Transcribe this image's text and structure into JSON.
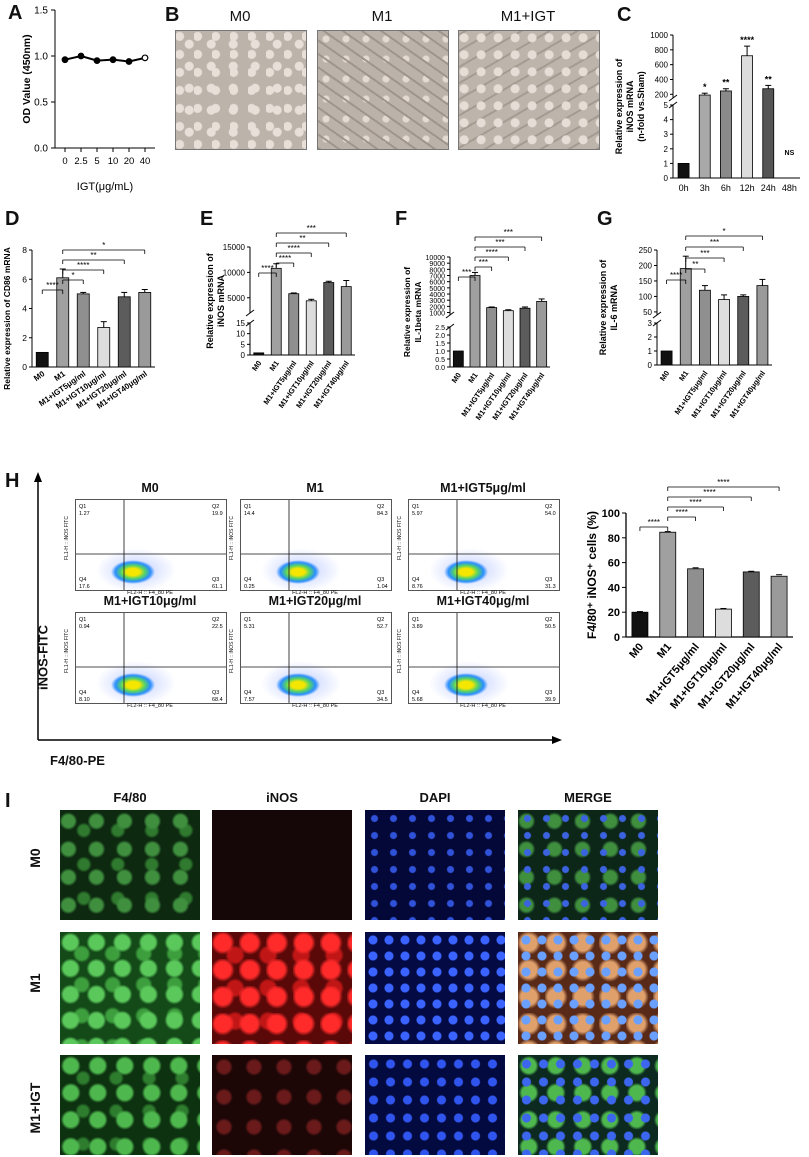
{
  "panels": {
    "A": "A",
    "B": "B",
    "C": "C",
    "D": "D",
    "E": "E",
    "F": "F",
    "G": "G",
    "H": "H",
    "I": "I"
  },
  "microscopy": {
    "labels": [
      "M0",
      "M1",
      "M1+IGT"
    ]
  },
  "flow": {
    "titles": [
      "M0",
      "M1",
      "M1+IGT5μg/ml",
      "M1+IGT10μg/ml",
      "M1+IGT20μg/ml",
      "M1+IGT40μg/ml"
    ],
    "quadrants": [
      {
        "q1": "1.27",
        "q2": "19.9",
        "q3": "61.1",
        "q4": "17.6"
      },
      {
        "q1": "14.4",
        "q2": "84.3",
        "q3": "1.04",
        "q4": "0.25"
      },
      {
        "q1": "5.97",
        "q2": "54.0",
        "q3": "31.3",
        "q4": "8.76"
      },
      {
        "q1": "0.94",
        "q2": "22.5",
        "q3": "68.4",
        "q4": "8.10"
      },
      {
        "q1": "5.31",
        "q2": "52.7",
        "q3": "34.5",
        "q4": "7.57"
      },
      {
        "q1": "3.89",
        "q2": "50.5",
        "q3": "39.9",
        "q4": "5.68"
      }
    ],
    "q_labels": {
      "q1": "Q1",
      "q2": "Q2",
      "q3": "Q3",
      "q4": "Q4"
    },
    "x_axis_small": "FL2-H :: F4_80 PE",
    "y_axis_small": "FL1-H :: iNOS FITC",
    "x_axis": "F4/80-PE",
    "y_axis": "iNOS-FITC"
  },
  "immunofluorescence": {
    "columns": [
      "F4/80",
      "iNOS",
      "DAPI",
      "MERGE"
    ],
    "rows": [
      "M0",
      "M1",
      "M1+IGT"
    ]
  },
  "chart_data": [
    {
      "panel": "A",
      "type": "line",
      "x": [
        "0",
        "2.5",
        "5",
        "10",
        "20",
        "40"
      ],
      "values": [
        0.96,
        1.0,
        0.95,
        0.96,
        0.94,
        0.98
      ],
      "xlabel": "IGT(μg/mL)",
      "ylabel": "OD Value (450nm)",
      "ylim": [
        0,
        1.5
      ],
      "yticks": [
        "0.0",
        "0.5",
        "1.0",
        "1.5"
      ]
    },
    {
      "panel": "C",
      "type": "bar",
      "categories": [
        "0h",
        "3h",
        "6h",
        "12h",
        "24h",
        "48h"
      ],
      "values": [
        1,
        190,
        245,
        720,
        275,
        0
      ],
      "errors": [
        0,
        25,
        30,
        130,
        45,
        0
      ],
      "significance": [
        "",
        "*",
        "**",
        "****",
        "**",
        "NS"
      ],
      "ylabel": "Relative expression of iNOS mRNA (n-fold vs.Sham)",
      "yticks_upper": [
        "200",
        "400",
        "600",
        "800",
        "1000"
      ],
      "yticks_lower": [
        "0",
        "1",
        "2",
        "3",
        "4",
        "5"
      ],
      "colors": [
        "#111111",
        "#a8a8a8",
        "#8a8a8a",
        "#dcdcdc",
        "#555555",
        "#555555"
      ]
    },
    {
      "panel": "D",
      "type": "bar",
      "categories": [
        "M0",
        "M1",
        "M1+IGT5μg/ml",
        "M1+IGT10μg/ml",
        "M1+IGT20μg/ml",
        "M1+IGT40μg/ml"
      ],
      "values": [
        1.0,
        6.1,
        5.0,
        2.7,
        4.8,
        5.1
      ],
      "errors": [
        0,
        0.6,
        0.1,
        0.4,
        0.3,
        0.2
      ],
      "ylabel": "Relative expression of CD86 mRNA",
      "yticks": [
        "0",
        "2",
        "4",
        "6",
        "8"
      ],
      "ylim": [
        0,
        8
      ],
      "brackets": [
        {
          "from": 0,
          "to": 1,
          "label": "****"
        },
        {
          "from": 1,
          "to": 2,
          "label": "*"
        },
        {
          "from": 1,
          "to": 3,
          "label": "****"
        },
        {
          "from": 1,
          "to": 4,
          "label": "**"
        },
        {
          "from": 1,
          "to": 5,
          "label": "*"
        }
      ]
    },
    {
      "panel": "E",
      "type": "bar",
      "categories": [
        "M0",
        "M1",
        "M1+IGT5μg/ml",
        "M1+IGT10μg/ml",
        "M1+IGT20μg/ml",
        "M1+IGT40μg/ml"
      ],
      "values": [
        1,
        10800,
        5800,
        4400,
        8000,
        7200
      ],
      "errors": [
        0,
        900,
        150,
        300,
        250,
        1200
      ],
      "ylabel": "Relative expression of iNOS mRNA",
      "yticks_upper": [
        "5000",
        "10000",
        "15000"
      ],
      "yticks_lower": [
        "0",
        "5",
        "10",
        "15"
      ],
      "brackets": [
        {
          "from": 0,
          "to": 1,
          "label": "****"
        },
        {
          "from": 1,
          "to": 2,
          "label": "****"
        },
        {
          "from": 1,
          "to": 3,
          "label": "****"
        },
        {
          "from": 1,
          "to": 4,
          "label": "**"
        },
        {
          "from": 1,
          "to": 5,
          "label": "***"
        }
      ]
    },
    {
      "panel": "F",
      "type": "bar",
      "categories": [
        "M0",
        "M1",
        "M1+IGT5μg/ml",
        "M1+IGT10μg/ml",
        "M1+IGT20μg/ml",
        "M1+IGT40μg/ml"
      ],
      "values": [
        1,
        7000,
        1800,
        1300,
        1700,
        2800
      ],
      "errors": [
        0,
        500,
        100,
        150,
        200,
        400
      ],
      "ylabel": "Relative expression of IL-1beta mRNA",
      "yticks_upper": [
        "1000",
        "2000",
        "3000",
        "4000",
        "5000",
        "6000",
        "7000",
        "8000",
        "9000",
        "10000"
      ],
      "yticks_lower": [
        "0.0",
        "0.5",
        "1.0",
        "1.5",
        "2.0",
        "2.5"
      ],
      "brackets": [
        {
          "from": 0,
          "to": 1,
          "label": "***"
        },
        {
          "from": 1,
          "to": 2,
          "label": "***"
        },
        {
          "from": 1,
          "to": 3,
          "label": "****"
        },
        {
          "from": 1,
          "to": 4,
          "label": "***"
        },
        {
          "from": 1,
          "to": 5,
          "label": "***"
        }
      ]
    },
    {
      "panel": "G",
      "type": "bar",
      "categories": [
        "M0",
        "M1",
        "M1+IGT5μg/ml",
        "M1+IGT10μg/ml",
        "M1+IGT20μg/ml",
        "M1+IGT40μg/ml"
      ],
      "values": [
        1,
        190,
        120,
        90,
        100,
        135
      ],
      "errors": [
        0,
        40,
        15,
        15,
        5,
        20
      ],
      "ylabel": "Relative expression of IL-6 mRNA",
      "yticks_upper": [
        "50",
        "100",
        "150",
        "200",
        "250"
      ],
      "yticks_lower": [
        "0",
        "1",
        "2",
        "3"
      ],
      "brackets": [
        {
          "from": 0,
          "to": 1,
          "label": "****"
        },
        {
          "from": 1,
          "to": 2,
          "label": "**"
        },
        {
          "from": 1,
          "to": 3,
          "label": "***"
        },
        {
          "from": 1,
          "to": 4,
          "label": "***"
        },
        {
          "from": 1,
          "to": 5,
          "label": "*"
        }
      ]
    },
    {
      "panel": "H",
      "type": "bar",
      "categories": [
        "M0",
        "M1",
        "M1+IGT5μg/ml",
        "M1+IGT10μg/ml",
        "M1+IGT20μg/ml",
        "M1+IGT40μg/ml"
      ],
      "values": [
        20,
        84.5,
        55,
        22.5,
        52.5,
        49
      ],
      "errors": [
        0.5,
        0.5,
        0.8,
        0.5,
        0.5,
        1.2
      ],
      "ylabel": "F4/80⁺ iNOS⁺ cells (%)",
      "yticks": [
        "0",
        "20",
        "40",
        "60",
        "80",
        "100"
      ],
      "ylim": [
        0,
        100
      ],
      "brackets": [
        {
          "from": 0,
          "to": 1,
          "label": "****"
        },
        {
          "from": 1,
          "to": 2,
          "label": "****"
        },
        {
          "from": 1,
          "to": 3,
          "label": "****"
        },
        {
          "from": 1,
          "to": 4,
          "label": "****"
        },
        {
          "from": 1,
          "to": 5,
          "label": "****"
        }
      ]
    }
  ]
}
